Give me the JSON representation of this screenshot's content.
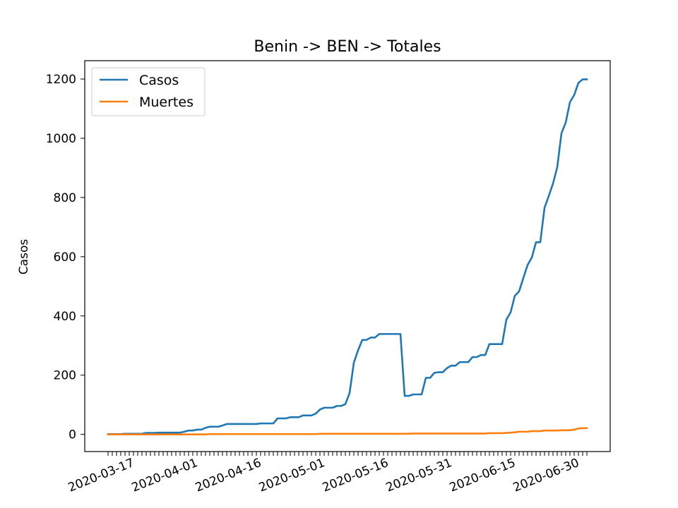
{
  "chart_data": {
    "type": "line",
    "title": "Benin -> BEN -> Totales",
    "xlabel": "",
    "ylabel": "Casos",
    "ylim": [
      -58,
      1262
    ],
    "x_start": "2020-03-12",
    "x_end": "2020-06-30",
    "x_tick_labels": [
      "2020-03-17",
      "2020-04-01",
      "2020-04-16",
      "2020-05-01",
      "2020-05-16",
      "2020-05-31",
      "2020-06-15",
      "2020-06-30"
    ],
    "y_ticks": [
      0,
      200,
      400,
      600,
      800,
      1000,
      1200
    ],
    "grid": false,
    "legend_position": "top-left",
    "series": [
      {
        "name": "Casos",
        "color": "#1f77b4",
        "values": [
          1,
          1,
          1,
          1,
          2,
          2,
          2,
          2,
          2,
          5,
          5,
          5,
          6,
          6,
          6,
          6,
          6,
          6,
          9,
          13,
          13,
          16,
          16,
          22,
          26,
          26,
          26,
          30,
          35,
          35,
          35,
          35,
          35,
          35,
          35,
          35,
          37,
          37,
          37,
          37,
          54,
          54,
          54,
          58,
          58,
          58,
          64,
          64,
          64,
          70,
          84,
          90,
          90,
          90,
          96,
          96,
          102,
          140,
          242,
          284,
          319,
          319,
          327,
          327,
          339,
          339,
          339,
          339,
          339,
          339,
          130,
          130,
          135,
          135,
          135,
          191,
          191,
          208,
          210,
          210,
          224,
          232,
          232,
          244,
          244,
          244,
          261,
          261,
          268,
          268,
          305,
          305,
          305,
          305,
          388,
          412,
          468,
          483,
          528,
          572,
          597,
          649,
          649,
          765,
          805,
          847,
          902,
          1017,
          1053,
          1122,
          1146,
          1187,
          1199,
          1199
        ],
        "line_end_x": "2020-06-30"
      },
      {
        "name": "Muertes",
        "color": "#ff7f0e",
        "values": [
          0,
          0,
          0,
          0,
          0,
          0,
          0,
          0,
          0,
          0,
          0,
          0,
          0,
          0,
          0,
          0,
          0,
          0,
          0,
          0,
          0,
          0,
          0,
          0,
          1,
          1,
          1,
          1,
          1,
          1,
          1,
          1,
          1,
          1,
          1,
          1,
          1,
          1,
          1,
          1,
          1,
          1,
          1,
          1,
          1,
          1,
          1,
          1,
          1,
          1,
          2,
          2,
          2,
          2,
          2,
          2,
          2,
          2,
          2,
          2,
          2,
          2,
          2,
          2,
          2,
          2,
          2,
          2,
          2,
          2,
          2,
          2,
          3,
          3,
          3,
          3,
          3,
          3,
          3,
          3,
          3,
          3,
          3,
          3,
          3,
          3,
          3,
          3,
          3,
          3,
          4,
          4,
          4,
          4,
          5,
          6,
          7,
          9,
          9,
          9,
          11,
          11,
          11,
          13,
          13,
          13,
          13,
          14,
          14,
          14,
          16,
          20,
          21,
          21
        ]
      }
    ]
  }
}
